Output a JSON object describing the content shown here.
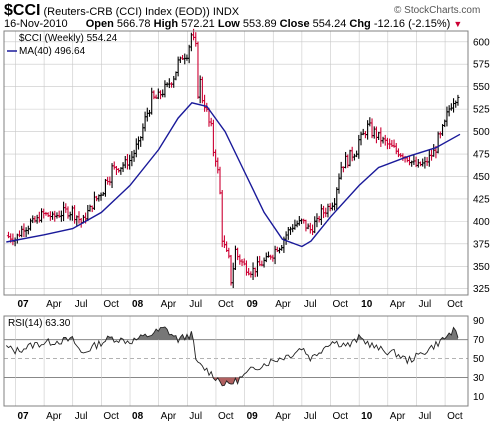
{
  "header": {
    "symbol": "$CCI",
    "description": "(Reuters-CRB (CCI) Index (EOD))",
    "exchange": "INDX",
    "watermark": "© StockCharts.com",
    "date": "16-Nov-2010",
    "open_label": "Open",
    "open": "566.78",
    "high_label": "High",
    "high": "572.21",
    "low_label": "Low",
    "low": "553.89",
    "close_label": "Close",
    "close": "554.24",
    "chg_label": "Chg",
    "chg": "-12.16 (-2.15%)"
  },
  "colors": {
    "up_bar": "#000000",
    "down_bar": "#cc0033",
    "ma_line": "#1a1a9a",
    "grid": "#c8c8c8",
    "rsi_line": "#222222",
    "rsi_overbought_fill": "#777777",
    "rsi_oversold_fill": "#b06060",
    "frame": "#808080"
  },
  "chart_data": [
    {
      "type": "bar",
      "subtype": "ohlc_weekly",
      "legend": [
        {
          "name": "$CCI (Weekly) 554.24",
          "style": "ohlc"
        },
        {
          "name": "MA(40) 496.64",
          "style": "line"
        }
      ],
      "x_ticks": [
        "07",
        "Apr",
        "Jul",
        "Oct",
        "08",
        "Apr",
        "Jul",
        "Oct",
        "09",
        "Apr",
        "Jul",
        "Oct",
        "10",
        "Apr",
        "Jul",
        "Oct"
      ],
      "x_range": [
        2006.9,
        2010.95
      ],
      "y_ticks": [
        325,
        350,
        375,
        400,
        425,
        450,
        475,
        500,
        525,
        550,
        575,
        600
      ],
      "ylim": [
        318,
        612
      ],
      "grid": true,
      "close_series": {
        "x": [
          2006.92,
          2007.0,
          2007.08,
          2007.17,
          2007.25,
          2007.33,
          2007.42,
          2007.5,
          2007.58,
          2007.67,
          2007.75,
          2007.83,
          2007.92,
          2008.0,
          2008.08,
          2008.17,
          2008.25,
          2008.33,
          2008.42,
          2008.5,
          2008.54,
          2008.58,
          2008.67,
          2008.75,
          2008.79,
          2008.83,
          2008.88,
          2008.92,
          2009.0,
          2009.08,
          2009.17,
          2009.25,
          2009.33,
          2009.42,
          2009.5,
          2009.58,
          2009.67,
          2009.75,
          2009.83,
          2009.92,
          2010.0,
          2010.08,
          2010.17,
          2010.25,
          2010.33,
          2010.42,
          2010.5,
          2010.58,
          2010.67,
          2010.75,
          2010.83,
          2010.88
        ],
        "y": [
          384,
          380,
          395,
          400,
          408,
          405,
          410,
          412,
          398,
          418,
          433,
          455,
          462,
          468,
          488,
          530,
          540,
          550,
          575,
          592,
          610,
          570,
          520,
          470,
          420,
          360,
          340,
          365,
          350,
          345,
          355,
          365,
          380,
          395,
          400,
          390,
          408,
          418,
          462,
          470,
          490,
          505,
          495,
          485,
          478,
          470,
          462,
          465,
          480,
          510,
          545,
          554
        ]
      },
      "ma_series": {
        "x": [
          2006.92,
          2007.25,
          2007.5,
          2007.75,
          2008.0,
          2008.25,
          2008.42,
          2008.54,
          2008.67,
          2008.83,
          2009.0,
          2009.17,
          2009.33,
          2009.5,
          2009.58,
          2009.75,
          2010.0,
          2010.17,
          2010.42,
          2010.67,
          2010.88
        ],
        "y": [
          377,
          385,
          392,
          410,
          440,
          480,
          515,
          532,
          528,
          500,
          455,
          410,
          380,
          372,
          378,
          405,
          440,
          460,
          472,
          482,
          497
        ]
      }
    },
    {
      "type": "line",
      "legend": [
        {
          "name": "RSI(14) 63.30"
        }
      ],
      "y_ticks": [
        10,
        30,
        50,
        70,
        90
      ],
      "ylim": [
        0,
        95
      ],
      "ref_lines": [
        30,
        50,
        70
      ],
      "x": [
        2006.92,
        2007.0,
        2007.17,
        2007.33,
        2007.5,
        2007.58,
        2007.67,
        2007.83,
        2008.0,
        2008.17,
        2008.3,
        2008.42,
        2008.54,
        2008.58,
        2008.67,
        2008.75,
        2008.83,
        2008.92,
        2009.0,
        2009.08,
        2009.25,
        2009.42,
        2009.5,
        2009.58,
        2009.75,
        2009.92,
        2010.0,
        2010.17,
        2010.33,
        2010.42,
        2010.5,
        2010.58,
        2010.67,
        2010.75,
        2010.83,
        2010.88
      ],
      "y": [
        62,
        58,
        65,
        68,
        70,
        55,
        62,
        72,
        68,
        75,
        82,
        70,
        76,
        45,
        38,
        30,
        22,
        26,
        32,
        40,
        48,
        55,
        62,
        50,
        68,
        64,
        72,
        60,
        55,
        48,
        52,
        58,
        65,
        72,
        80,
        63
      ]
    }
  ]
}
